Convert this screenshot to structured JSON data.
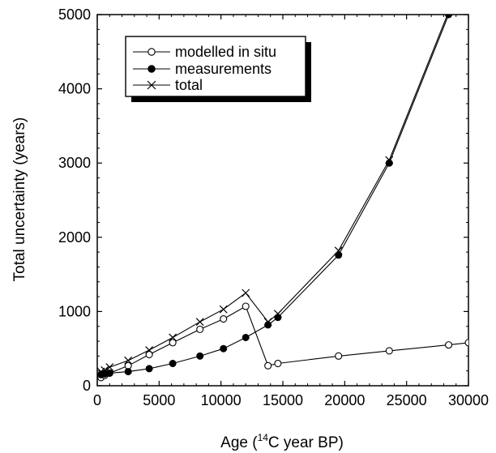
{
  "chart_data": {
    "type": "line",
    "title": "",
    "xlabel_prefix": "Age (",
    "xlabel_sup": "14",
    "xlabel_suffix": "C year BP)",
    "ylabel": "Total uncertainty (years)",
    "xlim": [
      0,
      30000
    ],
    "ylim": [
      0,
      5000
    ],
    "xticks": [
      0,
      5000,
      10000,
      15000,
      20000,
      25000,
      30000
    ],
    "yticks": [
      0,
      1000,
      2000,
      3000,
      4000,
      5000
    ],
    "xtick_labels": [
      "0",
      "5000",
      "10000",
      "15000",
      "20000",
      "25000",
      "30000"
    ],
    "ytick_labels": [
      "0",
      "1000",
      "2000",
      "3000",
      "4000",
      "5000"
    ],
    "grid": false,
    "legend_position": "top-left",
    "series": [
      {
        "name": "modelled in situ",
        "marker": "open-circle",
        "x": [
          300,
          600,
          1000,
          2500,
          4200,
          6100,
          8300,
          10200,
          12000,
          13800,
          14600,
          19500,
          23600,
          28400,
          30000
        ],
        "y": [
          110,
          140,
          170,
          270,
          420,
          580,
          760,
          900,
          1070,
          270,
          300,
          400,
          470,
          550,
          580
        ]
      },
      {
        "name": "measurements",
        "marker": "filled-circle",
        "x": [
          300,
          600,
          1000,
          2500,
          4200,
          6100,
          8300,
          10200,
          12000,
          13800,
          14600,
          19500,
          23600,
          28400
        ],
        "y": [
          150,
          160,
          170,
          190,
          230,
          300,
          400,
          500,
          650,
          820,
          920,
          1760,
          3000,
          5000
        ]
      },
      {
        "name": "total",
        "marker": "cross",
        "x": [
          300,
          600,
          1000,
          2500,
          4200,
          6100,
          8300,
          10200,
          12000,
          13800,
          14600,
          19500,
          23600,
          28400
        ],
        "y": [
          190,
          210,
          250,
          340,
          480,
          650,
          860,
          1030,
          1250,
          860,
          970,
          1820,
          3040,
          5040
        ]
      }
    ]
  }
}
